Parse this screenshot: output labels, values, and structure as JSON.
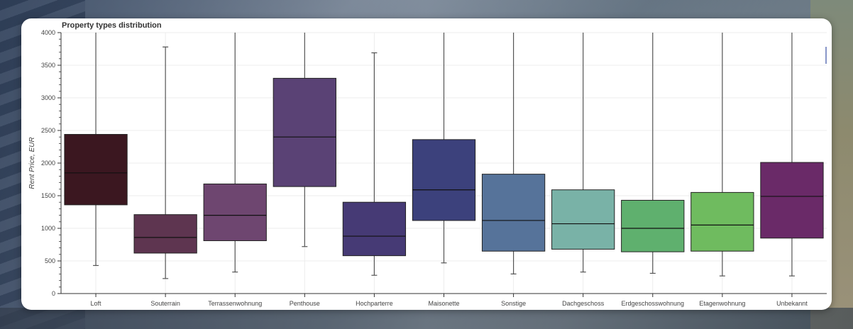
{
  "chart_data": {
    "type": "box",
    "title": "Property types distribution",
    "xlabel": "",
    "ylabel": "Rent Price, EUR",
    "ylim": [
      0,
      4000
    ],
    "yticks": [
      0,
      500,
      1000,
      1500,
      2000,
      2500,
      3000,
      3500,
      4000
    ],
    "grid": true,
    "legend": "none",
    "categories": [
      "Loft",
      "Souterrain",
      "Terrassenwohnung",
      "Penthouse",
      "Hochparterre",
      "Maisonette",
      "Sonstige",
      "Dachgeschoss",
      "Erdgeschosswohnung",
      "Etagenwohnung",
      "Unbekannt"
    ],
    "boxes": [
      {
        "category": "Loft",
        "whisker_low": 430,
        "q1": 1360,
        "median": 1850,
        "q3": 2440,
        "whisker_high": 4000,
        "color": "#3b1720"
      },
      {
        "category": "Souterrain",
        "whisker_low": 230,
        "q1": 620,
        "median": 860,
        "q3": 1210,
        "whisker_high": 3780,
        "color": "#5e3550"
      },
      {
        "category": "Terrassenwohnung",
        "whisker_low": 330,
        "q1": 810,
        "median": 1200,
        "q3": 1680,
        "whisker_high": 4000,
        "color": "#6e4670"
      },
      {
        "category": "Penthouse",
        "whisker_low": 720,
        "q1": 1640,
        "median": 2400,
        "q3": 3300,
        "whisker_high": 4000,
        "color": "#5a4275"
      },
      {
        "category": "Hochparterre",
        "whisker_low": 280,
        "q1": 580,
        "median": 880,
        "q3": 1400,
        "whisker_high": 3690,
        "color": "#463a75"
      },
      {
        "category": "Maisonette",
        "whisker_low": 470,
        "q1": 1120,
        "median": 1590,
        "q3": 2360,
        "whisker_high": 4000,
        "color": "#3c417c"
      },
      {
        "category": "Sonstige",
        "whisker_low": 300,
        "q1": 650,
        "median": 1120,
        "q3": 1830,
        "whisker_high": 4000,
        "color": "#56739a"
      },
      {
        "category": "Dachgeschoss",
        "whisker_low": 330,
        "q1": 680,
        "median": 1070,
        "q3": 1590,
        "whisker_high": 4000,
        "color": "#79b2a7"
      },
      {
        "category": "Erdgeschosswohnung",
        "whisker_low": 310,
        "q1": 640,
        "median": 1000,
        "q3": 1430,
        "whisker_high": 4000,
        "color": "#5fb06e"
      },
      {
        "category": "Etagenwohnung",
        "whisker_low": 270,
        "q1": 650,
        "median": 1050,
        "q3": 1550,
        "whisker_high": 4000,
        "color": "#6fbb5f"
      },
      {
        "category": "Unbekannt",
        "whisker_low": 270,
        "q1": 850,
        "median": 1490,
        "q3": 2010,
        "whisker_high": 4000,
        "color": "#6a2a68"
      }
    ]
  }
}
